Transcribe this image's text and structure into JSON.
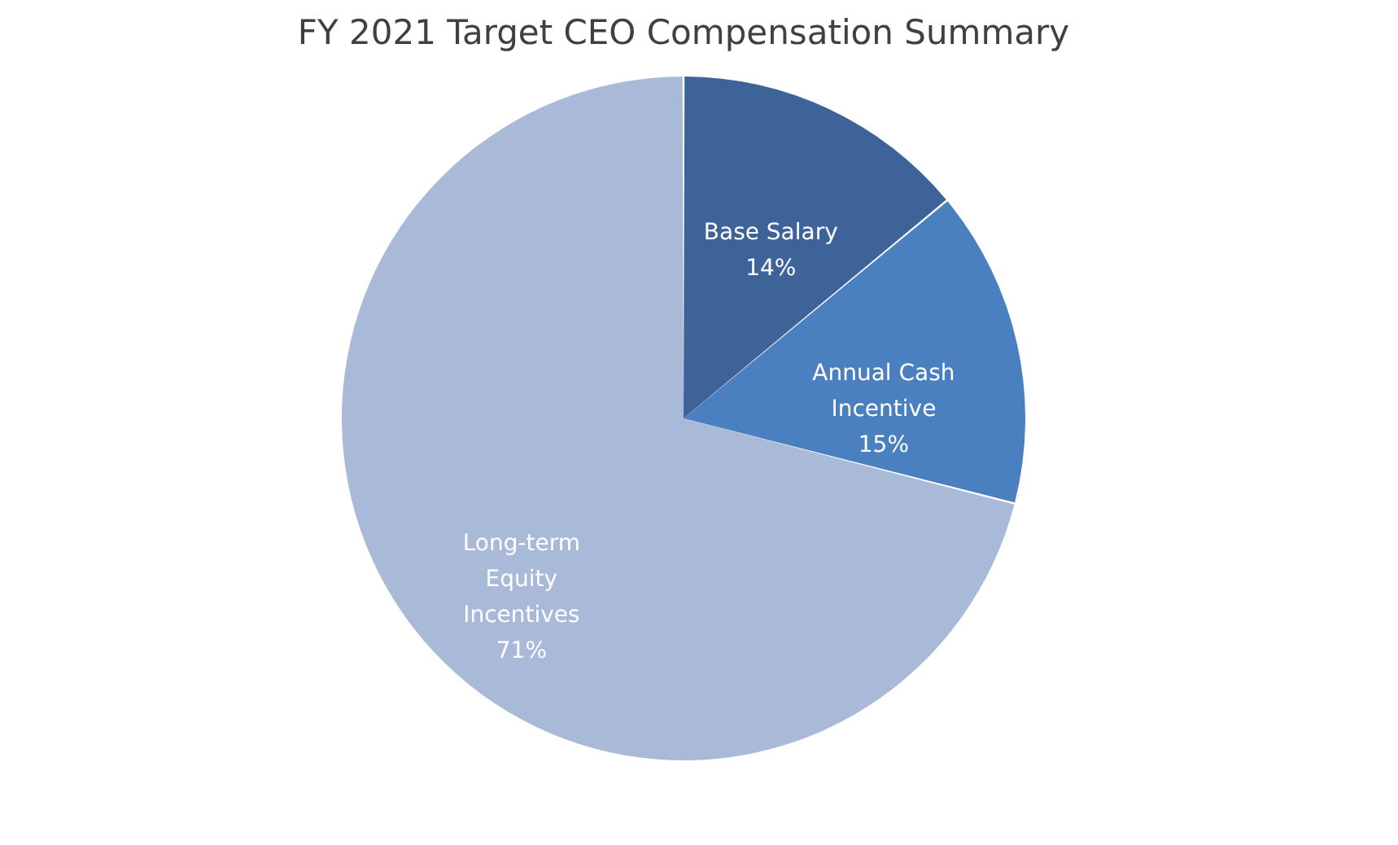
{
  "chart_data": {
    "type": "pie",
    "title": "FY 2021 Target CEO Compensation Summary",
    "categories": [
      "Base Salary",
      "Annual Cash Incentive",
      "Long-term Equity Incentives"
    ],
    "values": [
      14,
      15,
      71
    ],
    "colors": [
      "#3e6399",
      "#4a7fc0",
      "#a9b9d8"
    ],
    "value_labels": [
      "14%",
      "15%",
      "71%"
    ],
    "legend": false
  }
}
